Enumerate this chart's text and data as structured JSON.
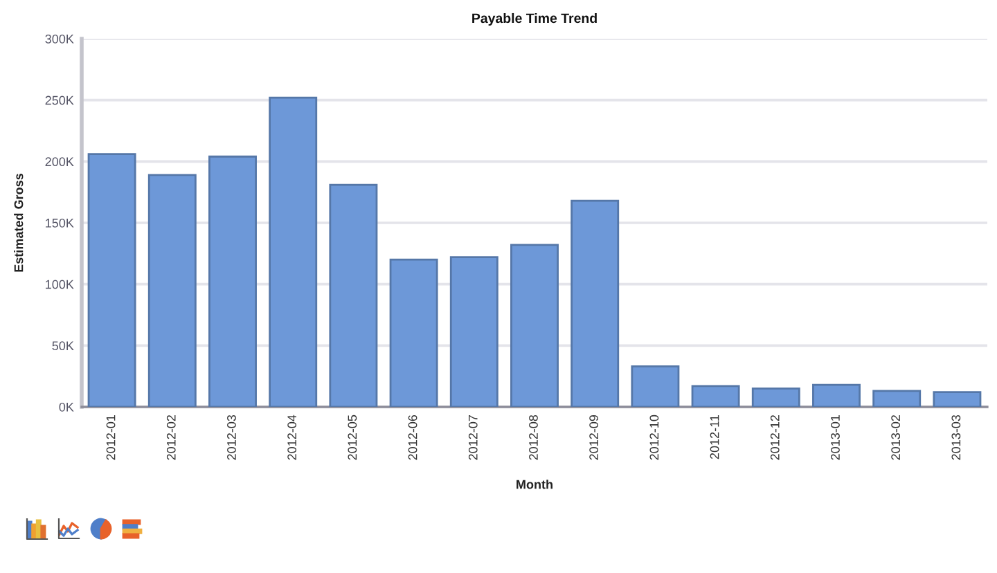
{
  "chart_data": {
    "type": "bar",
    "title": "Payable Time Trend",
    "xlabel": "Month",
    "ylabel": "Estimated Gross",
    "categories": [
      "2012-01",
      "2012-02",
      "2012-03",
      "2012-04",
      "2012-05",
      "2012-06",
      "2012-07",
      "2012-08",
      "2012-09",
      "2012-10",
      "2012-11",
      "2012-12",
      "2013-01",
      "2013-02",
      "2013-03"
    ],
    "values": [
      206000,
      189000,
      204000,
      252000,
      181000,
      120000,
      122000,
      132000,
      168000,
      33000,
      17000,
      15000,
      18000,
      13000,
      12000
    ],
    "color": "#6d98d8",
    "ylim": [
      0,
      300000
    ],
    "yticks": [
      {
        "value": 0,
        "label": "0K"
      },
      {
        "value": 50000,
        "label": "50K"
      },
      {
        "value": 100000,
        "label": "100K"
      },
      {
        "value": 150000,
        "label": "150K"
      },
      {
        "value": 200000,
        "label": "200K"
      },
      {
        "value": 250000,
        "label": "250K"
      },
      {
        "value": 300000,
        "label": "300K"
      }
    ],
    "grid": "y"
  }
}
